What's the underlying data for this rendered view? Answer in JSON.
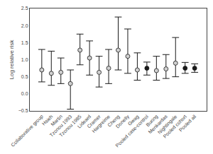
{
  "chart_data": {
    "type": "errorbar",
    "categories": [
      "Collaborative group",
      "Hsieh",
      "Martin",
      "Tzonou 1993",
      "Tzonou 1985",
      "Lideard",
      "Cramer",
      "Hargreime",
      "Cheng",
      "Donelly",
      "Gwag",
      "Pooled case-control",
      "Buring",
      "Menkardas",
      "Nightingale",
      "Pooled cohort",
      "Pooled all"
    ],
    "series": [
      {
        "values": [
          0.7,
          0.6,
          0.63,
          0.3,
          1.28,
          1.05,
          0.63,
          0.75,
          1.28,
          1.1,
          0.7,
          0.75,
          0.68,
          0.73,
          0.9,
          0.75,
          0.75
        ],
        "lo": [
          0.35,
          0.25,
          0.3,
          -0.45,
          0.85,
          0.55,
          0.2,
          0.3,
          0.7,
          0.6,
          0.4,
          0.55,
          0.4,
          0.45,
          0.5,
          0.6,
          0.63
        ],
        "hi": [
          1.3,
          1.25,
          1.05,
          0.7,
          1.75,
          1.55,
          1.1,
          1.3,
          2.25,
          1.9,
          1.2,
          0.93,
          1.1,
          1.15,
          1.65,
          0.92,
          0.88
        ],
        "color": "#1a1a1a",
        "colors": [
          "#d0d0d0",
          "#d0d0d0",
          "#d0d0d0",
          "#d0d0d0",
          "#d0d0d0",
          "#d0d0d0",
          "#d0d0d0",
          "#d0d0d0",
          "#d0d0d0",
          "#d0d0d0",
          "#d0d0d0",
          "#1a1a1a",
          "#d0d0d0",
          "#d0d0d0",
          "#d0d0d0",
          "#1a1a1a",
          "#1a1a1a"
        ],
        "marker": "circle"
      }
    ],
    "ylabel": "Log relative risk",
    "ylim": [
      -0.5,
      2.5
    ],
    "yticks": [
      {
        "value": -0.5,
        "label": "−0.5"
      },
      {
        "value": 0.0,
        "label": "0.0"
      },
      {
        "value": 0.5,
        "label": "0.5"
      },
      {
        "value": 1.0,
        "label": "1.0"
      },
      {
        "value": 1.5,
        "label": "1.5"
      },
      {
        "value": 2.0,
        "label": "2.0"
      },
      {
        "value": 2.5,
        "label": "2.5"
      }
    ],
    "grid": false
  }
}
